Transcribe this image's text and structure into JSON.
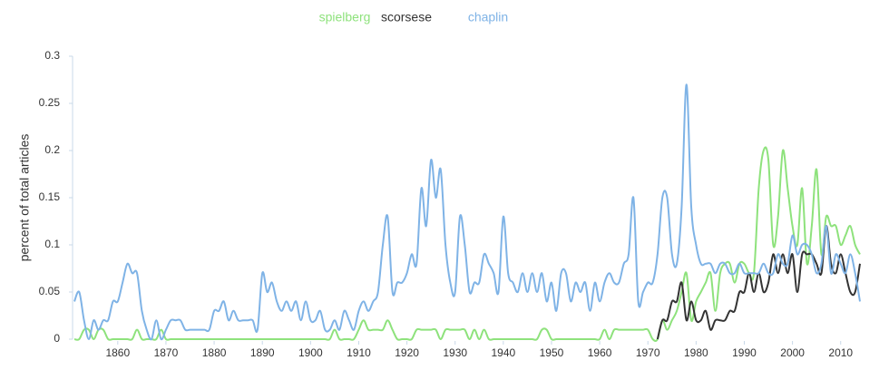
{
  "chart_data": {
    "type": "line",
    "y_label": "percent of total articles",
    "x": [
      1851,
      1852,
      1853,
      1854,
      1855,
      1856,
      1857,
      1858,
      1859,
      1860,
      1861,
      1862,
      1863,
      1864,
      1865,
      1866,
      1867,
      1868,
      1869,
      1870,
      1871,
      1872,
      1873,
      1874,
      1875,
      1876,
      1877,
      1878,
      1879,
      1880,
      1881,
      1882,
      1883,
      1884,
      1885,
      1886,
      1887,
      1888,
      1889,
      1890,
      1891,
      1892,
      1893,
      1894,
      1895,
      1896,
      1897,
      1898,
      1899,
      1900,
      1901,
      1902,
      1903,
      1904,
      1905,
      1906,
      1907,
      1908,
      1909,
      1910,
      1911,
      1912,
      1913,
      1914,
      1915,
      1916,
      1917,
      1918,
      1919,
      1920,
      1921,
      1922,
      1923,
      1924,
      1925,
      1926,
      1927,
      1928,
      1929,
      1930,
      1931,
      1932,
      1933,
      1934,
      1935,
      1936,
      1937,
      1938,
      1939,
      1940,
      1941,
      1942,
      1943,
      1944,
      1945,
      1946,
      1947,
      1948,
      1949,
      1950,
      1951,
      1952,
      1953,
      1954,
      1955,
      1956,
      1957,
      1958,
      1959,
      1960,
      1961,
      1962,
      1963,
      1964,
      1965,
      1966,
      1967,
      1968,
      1969,
      1970,
      1971,
      1972,
      1973,
      1974,
      1975,
      1976,
      1977,
      1978,
      1979,
      1980,
      1981,
      1982,
      1983,
      1984,
      1985,
      1986,
      1987,
      1988,
      1989,
      1990,
      1991,
      1992,
      1993,
      1994,
      1995,
      1996,
      1997,
      1998,
      1999,
      2000,
      2001,
      2002,
      2003,
      2004,
      2005,
      2006,
      2007,
      2008,
      2009,
      2010,
      2011,
      2012,
      2013,
      2014
    ],
    "series": [
      {
        "name": "spielberg",
        "color": "#8ee27c",
        "values": [
          0,
          0,
          0.01,
          0.01,
          0,
          0.01,
          0.01,
          0,
          0,
          0,
          0,
          0,
          0,
          0.01,
          0,
          0,
          0,
          0,
          0.01,
          0,
          0,
          0,
          0,
          0,
          0,
          0,
          0,
          0,
          0,
          0,
          0,
          0,
          0,
          0,
          0,
          0,
          0,
          0,
          0,
          0,
          0,
          0,
          0,
          0,
          0,
          0,
          0,
          0,
          0,
          0,
          0,
          0,
          0,
          0,
          0.01,
          0,
          0,
          0,
          0,
          0.01,
          0.02,
          0.01,
          0.01,
          0.01,
          0.01,
          0.02,
          0.01,
          0,
          0,
          0,
          0,
          0.01,
          0.01,
          0.01,
          0.01,
          0.01,
          0,
          0.01,
          0.01,
          0.01,
          0.01,
          0.01,
          0,
          0.01,
          0,
          0.01,
          0,
          0,
          0,
          0,
          0,
          0,
          0,
          0,
          0,
          0,
          0,
          0.01,
          0.01,
          0,
          0,
          0,
          0,
          0,
          0,
          0,
          0,
          0,
          0,
          0,
          0.01,
          0,
          0.01,
          0.01,
          0.01,
          0.01,
          0.01,
          0.01,
          0.01,
          0.01,
          0,
          0,
          0.02,
          0.01,
          0.02,
          0.03,
          0.05,
          0.07,
          0.02,
          0.04,
          0.05,
          0.06,
          0.07,
          0.03,
          0.07,
          0.08,
          0.08,
          0.06,
          0.08,
          0.08,
          0.07,
          0.07,
          0.16,
          0.2,
          0.19,
          0.1,
          0.13,
          0.2,
          0.16,
          0.12,
          0.1,
          0.16,
          0.08,
          0.12,
          0.18,
          0.09,
          0.13,
          0.12,
          0.12,
          0.1,
          0.11,
          0.12,
          0.1,
          0.09
        ]
      },
      {
        "name": "scorsese",
        "color": "#333333",
        "values": [
          null,
          null,
          null,
          null,
          null,
          null,
          null,
          null,
          null,
          null,
          null,
          null,
          null,
          null,
          null,
          null,
          null,
          null,
          null,
          null,
          null,
          null,
          null,
          null,
          null,
          null,
          null,
          null,
          null,
          null,
          null,
          null,
          null,
          null,
          null,
          null,
          null,
          null,
          null,
          null,
          null,
          null,
          null,
          null,
          null,
          null,
          null,
          null,
          null,
          null,
          null,
          null,
          null,
          null,
          null,
          null,
          null,
          null,
          null,
          null,
          null,
          null,
          null,
          null,
          null,
          null,
          null,
          null,
          null,
          null,
          null,
          null,
          null,
          null,
          null,
          null,
          null,
          null,
          null,
          null,
          null,
          null,
          null,
          null,
          null,
          null,
          null,
          null,
          null,
          null,
          null,
          null,
          null,
          null,
          null,
          null,
          null,
          null,
          null,
          null,
          null,
          null,
          null,
          null,
          null,
          null,
          null,
          null,
          null,
          null,
          null,
          null,
          null,
          null,
          null,
          null,
          null,
          null,
          null,
          null,
          null,
          0,
          0.02,
          0.02,
          0.04,
          0.04,
          0.06,
          0.02,
          0.04,
          0.02,
          0.02,
          0.03,
          0.01,
          0.02,
          0.02,
          0.02,
          0.03,
          0.03,
          0.05,
          0.05,
          0.07,
          0.05,
          0.07,
          0.05,
          0.06,
          0.09,
          0.07,
          0.09,
          0.07,
          0.09,
          0.05,
          0.09,
          0.09,
          0.09,
          0.08,
          0.07,
          0.12,
          0.08,
          0.07,
          0.09,
          0.07,
          0.05,
          0.05,
          0.08
        ]
      },
      {
        "name": "chaplin",
        "color": "#7fb3e6",
        "values": [
          0.04,
          0.05,
          0.02,
          0,
          0.02,
          0.01,
          0.02,
          0.02,
          0.04,
          0.04,
          0.06,
          0.08,
          0.07,
          0.07,
          0.03,
          0.01,
          0,
          0.02,
          0,
          0.01,
          0.02,
          0.02,
          0.02,
          0.01,
          0.01,
          0.01,
          0.01,
          0.01,
          0.01,
          0.03,
          0.03,
          0.04,
          0.02,
          0.03,
          0.02,
          0.02,
          0.02,
          0.02,
          0.01,
          0.07,
          0.05,
          0.06,
          0.04,
          0.03,
          0.04,
          0.03,
          0.04,
          0.02,
          0.04,
          0.02,
          0.02,
          0.03,
          0.01,
          0.01,
          0.02,
          0.01,
          0.03,
          0.02,
          0.01,
          0.03,
          0.04,
          0.03,
          0.04,
          0.05,
          0.1,
          0.13,
          0.05,
          0.06,
          0.06,
          0.07,
          0.09,
          0.08,
          0.16,
          0.12,
          0.19,
          0.15,
          0.18,
          0.1,
          0.06,
          0.05,
          0.13,
          0.1,
          0.05,
          0.06,
          0.06,
          0.09,
          0.08,
          0.07,
          0.05,
          0.13,
          0.07,
          0.06,
          0.05,
          0.07,
          0.05,
          0.07,
          0.05,
          0.07,
          0.04,
          0.06,
          0.03,
          0.07,
          0.07,
          0.04,
          0.06,
          0.05,
          0.06,
          0.03,
          0.06,
          0.04,
          0.06,
          0.07,
          0.06,
          0.06,
          0.08,
          0.09,
          0.15,
          0.04,
          0.05,
          0.06,
          0.06,
          0.09,
          0.15,
          0.15,
          0.09,
          0.08,
          0.14,
          0.27,
          0.14,
          0.1,
          0.08,
          0.08,
          0.08,
          0.07,
          0.08,
          0.08,
          0.07,
          0.07,
          0.08,
          0.07,
          0.07,
          0.07,
          0.07,
          0.08,
          0.07,
          0.07,
          0.09,
          0.08,
          0.08,
          0.11,
          0.09,
          0.1,
          0.1,
          0.09,
          0.07,
          0.08,
          0.12,
          0.07,
          0.09,
          0.08,
          0.07,
          0.09,
          0.07,
          0.04
        ]
      }
    ],
    "xlim": [
      1851,
      2014
    ],
    "xticks": [
      1860,
      1870,
      1880,
      1890,
      1900,
      1910,
      1920,
      1930,
      1940,
      1950,
      1960,
      1970,
      1980,
      1990,
      2000,
      2010
    ],
    "ylim": [
      0,
      0.3
    ],
    "yticks": [
      0,
      0.05,
      0.1,
      0.15,
      0.2,
      0.25,
      0.3
    ],
    "grid": false,
    "legend": "top"
  }
}
